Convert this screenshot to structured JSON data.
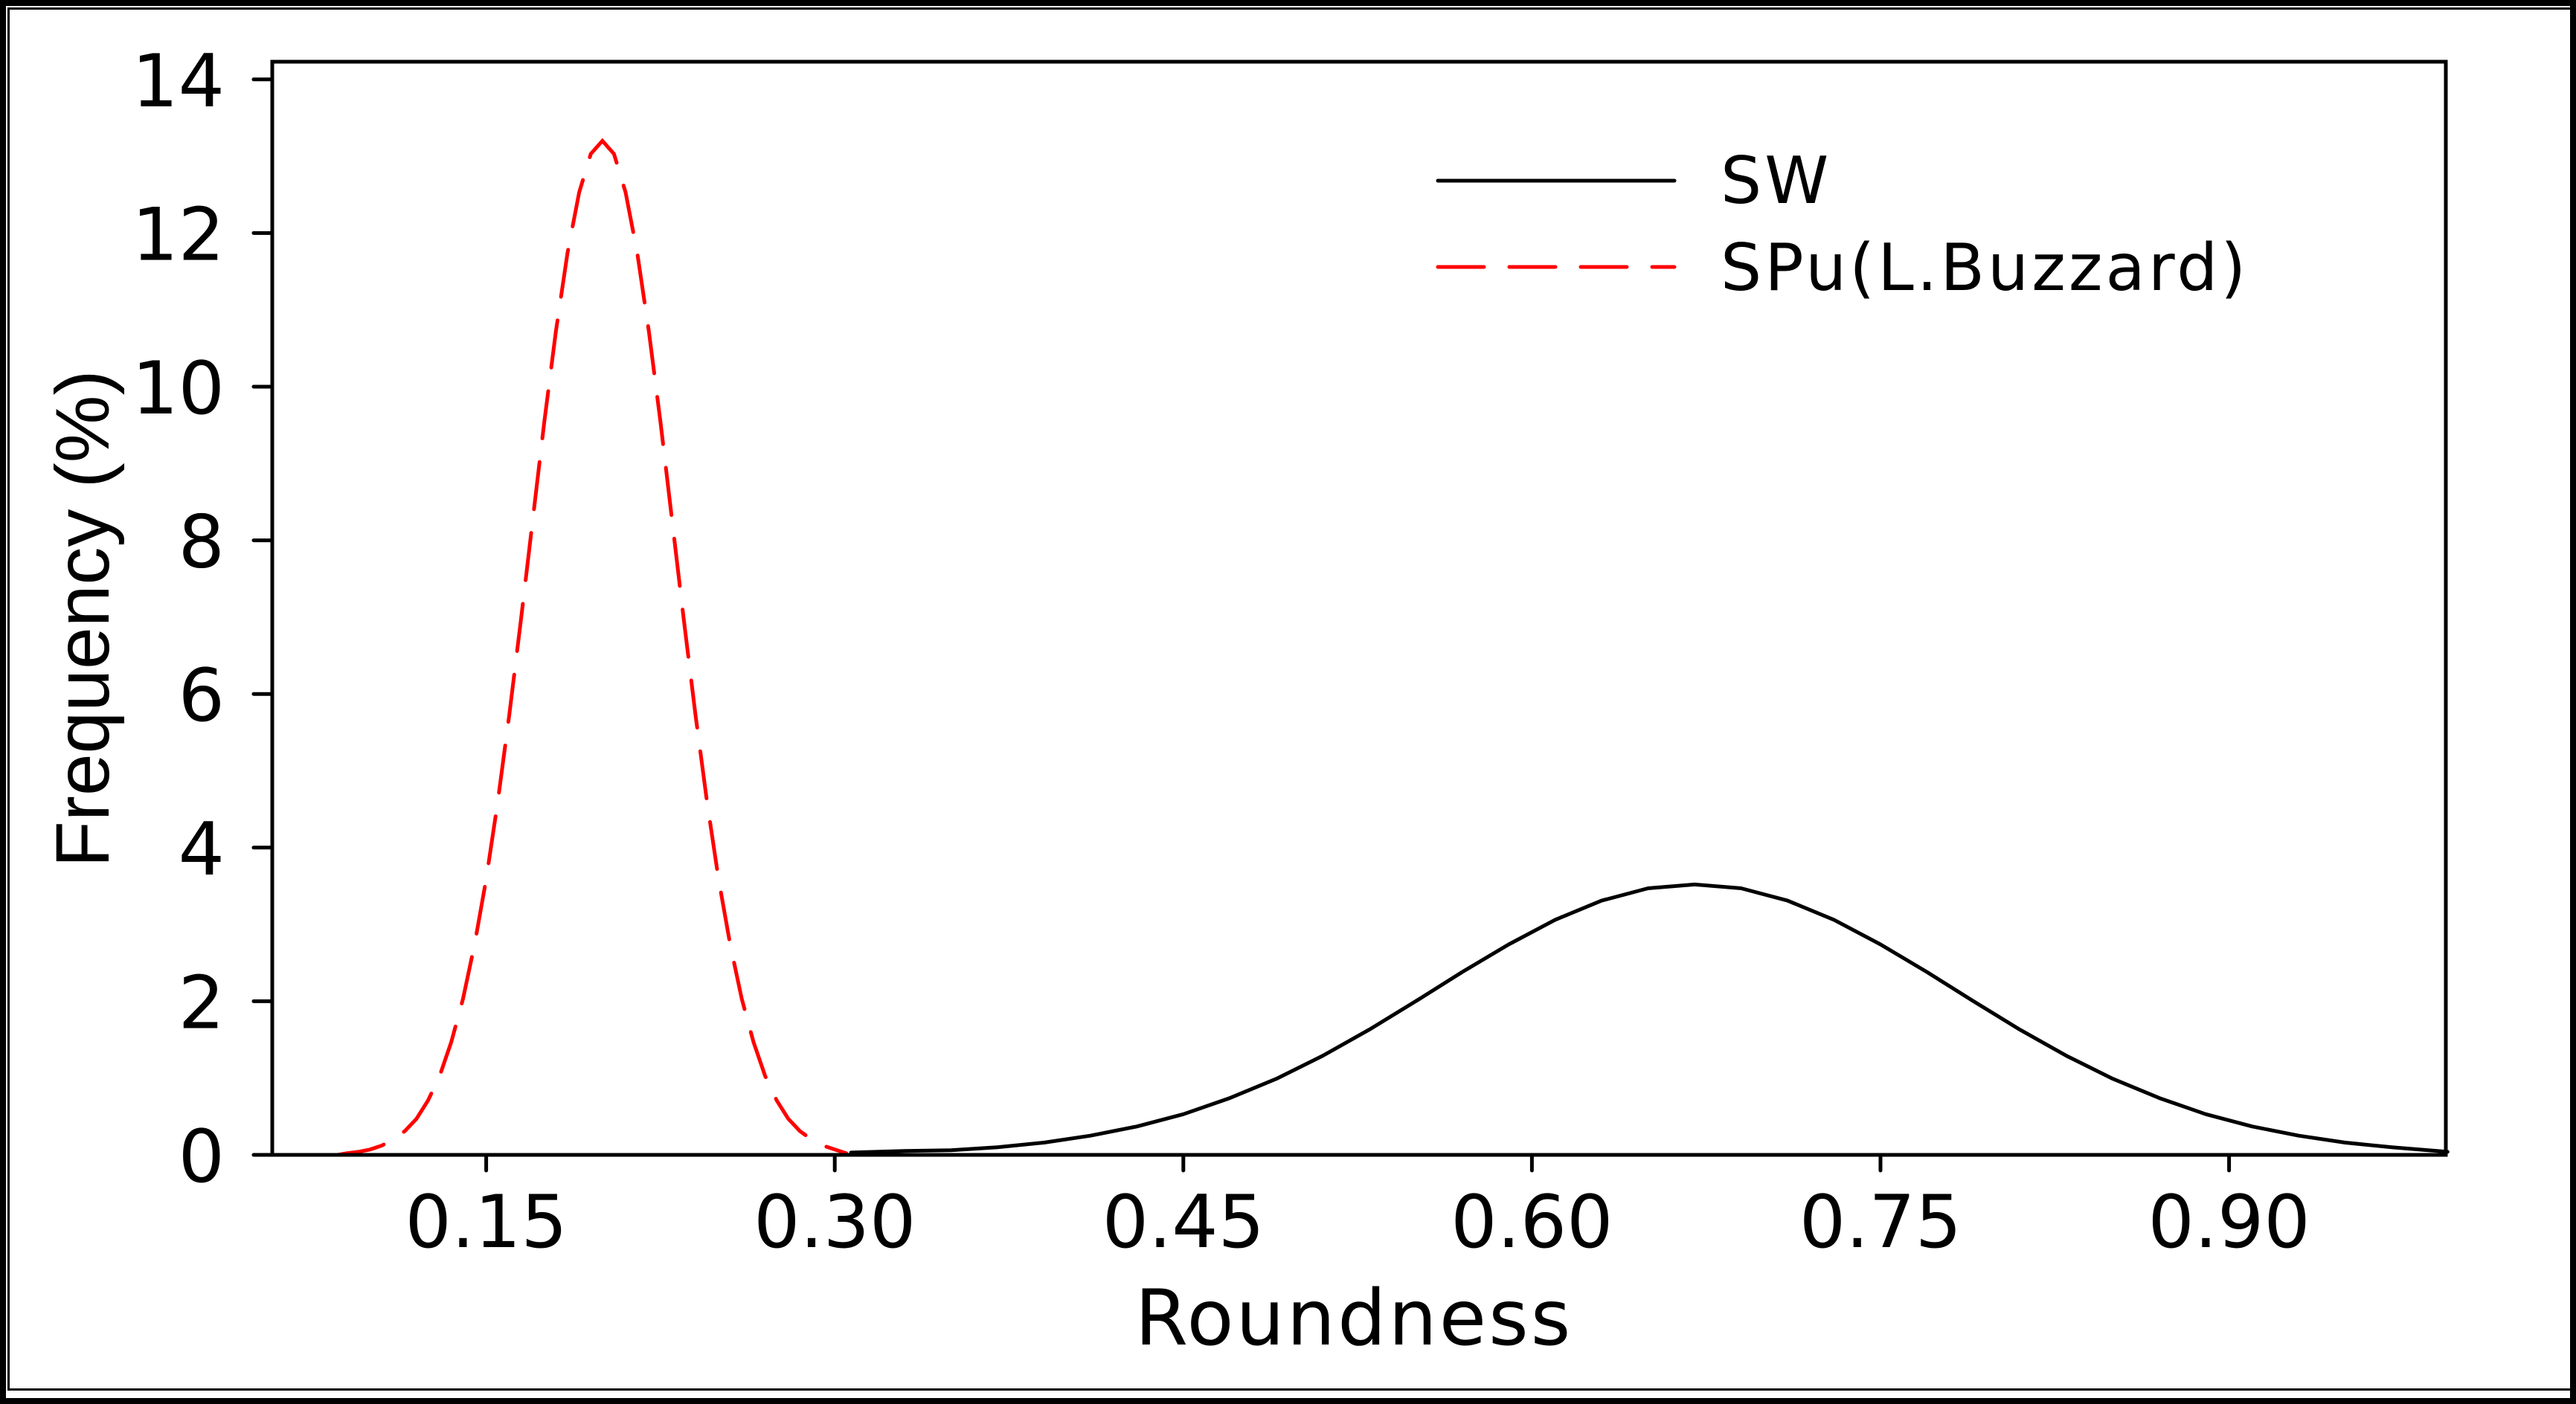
{
  "chart_data": {
    "type": "line",
    "title": "",
    "xlabel": "Roundness",
    "ylabel": "Frequency (%)",
    "xlim": [
      0.058,
      0.994
    ],
    "ylim": [
      0,
      14.2
    ],
    "grid": false,
    "legend_position": "upper right",
    "x_ticks": [
      0.15,
      0.3,
      0.45,
      0.6,
      0.75,
      0.9
    ],
    "x_tick_labels": [
      "0.15",
      "0.30",
      "0.45",
      "0.60",
      "0.75",
      "0.90"
    ],
    "y_ticks": [
      0,
      2,
      4,
      6,
      8,
      10,
      12,
      14
    ],
    "y_tick_labels": [
      "0",
      "2",
      "4",
      "6",
      "8",
      "10",
      "12",
      "14"
    ],
    "series": [
      {
        "name": "SW",
        "color": "#000000",
        "line_style": "solid",
        "x": [
          0.307,
          0.33,
          0.35,
          0.37,
          0.39,
          0.41,
          0.43,
          0.45,
          0.47,
          0.49,
          0.51,
          0.53,
          0.55,
          0.57,
          0.59,
          0.61,
          0.63,
          0.65,
          0.67,
          0.69,
          0.71,
          0.73,
          0.75,
          0.77,
          0.79,
          0.81,
          0.83,
          0.85,
          0.87,
          0.89,
          0.91,
          0.93,
          0.95,
          0.97,
          0.994
        ],
        "y": [
          0.03,
          0.05,
          0.06,
          0.1,
          0.16,
          0.25,
          0.37,
          0.53,
          0.74,
          0.99,
          1.29,
          1.63,
          2.0,
          2.38,
          2.74,
          3.06,
          3.31,
          3.47,
          3.52,
          3.47,
          3.31,
          3.06,
          2.74,
          2.38,
          2.0,
          1.63,
          1.29,
          0.99,
          0.74,
          0.53,
          0.37,
          0.25,
          0.16,
          0.1,
          0.04
        ]
      },
      {
        "name": "SPu(L.Buzzard)",
        "color": "#ff0000",
        "line_style": "dashed",
        "x": [
          0.086,
          0.09,
          0.095,
          0.1,
          0.105,
          0.11,
          0.115,
          0.12,
          0.125,
          0.13,
          0.135,
          0.14,
          0.145,
          0.15,
          0.155,
          0.16,
          0.165,
          0.17,
          0.175,
          0.18,
          0.185,
          0.19,
          0.195,
          0.2,
          0.205,
          0.21,
          0.215,
          0.22,
          0.225,
          0.23,
          0.235,
          0.24,
          0.245,
          0.25,
          0.255,
          0.26,
          0.265,
          0.27,
          0.275,
          0.28,
          0.285,
          0.29,
          0.295,
          0.3,
          0.305
        ],
        "y": [
          0.0,
          0.02,
          0.04,
          0.07,
          0.12,
          0.2,
          0.31,
          0.47,
          0.71,
          1.03,
          1.47,
          2.03,
          2.74,
          3.59,
          4.6,
          5.74,
          6.98,
          8.26,
          9.54,
          10.72,
          11.74,
          12.53,
          13.03,
          13.2,
          13.03,
          12.53,
          11.74,
          10.72,
          9.54,
          8.26,
          6.98,
          5.74,
          4.6,
          3.59,
          2.74,
          2.03,
          1.47,
          1.03,
          0.71,
          0.47,
          0.31,
          0.2,
          0.12,
          0.07,
          0.02
        ]
      }
    ]
  },
  "legend": {
    "items": [
      {
        "label": "SW",
        "color": "#000000",
        "line_style": "solid"
      },
      {
        "label": "SPu(L.Buzzard)",
        "color": "#ff0000",
        "line_style": "dashed"
      }
    ]
  }
}
